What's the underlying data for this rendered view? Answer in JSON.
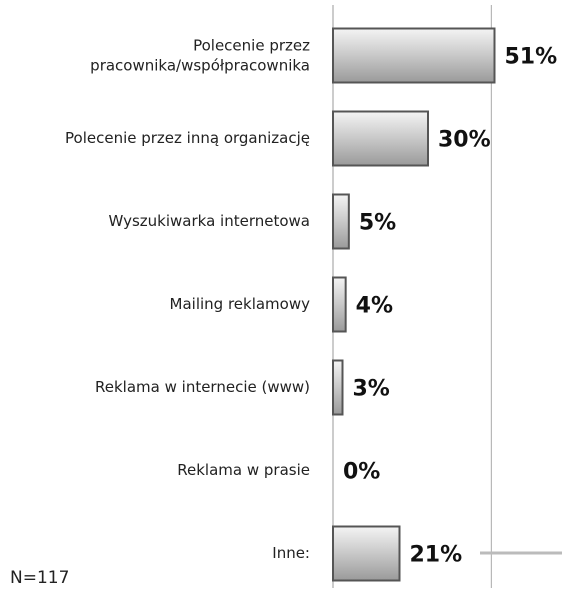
{
  "chart_data": {
    "type": "hbar",
    "categories": [
      "Polecenie przez\npracownika/współpracownika",
      "Polecenie przez inną organizację",
      "Wyszukiwarka internetowa",
      "Mailing reklamowy",
      "Reklama w internecie (www)",
      "Reklama w prasie",
      "Inne:"
    ],
    "values": [
      51,
      30,
      5,
      4,
      3,
      0,
      21
    ],
    "value_labels": [
      "51%",
      "30%",
      "5%",
      "4%",
      "3%",
      "0%",
      "21%"
    ],
    "color": "#c8c8c8",
    "xlim": [
      0,
      60
    ],
    "xticks": [
      0,
      50
    ],
    "tick_labels": false,
    "grid": true,
    "note": "N=117"
  }
}
